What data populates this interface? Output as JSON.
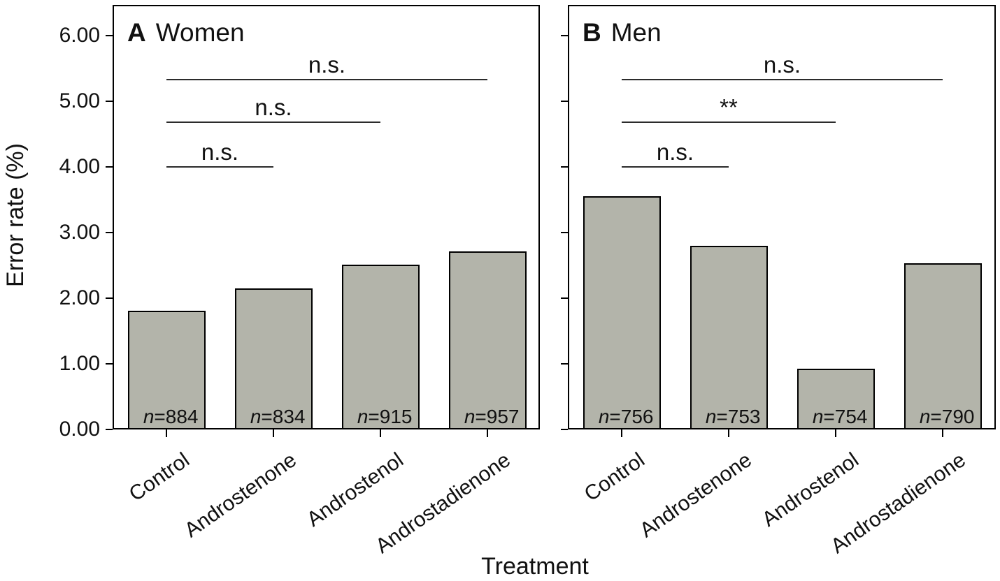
{
  "figure": {
    "xlabel": "Treatment",
    "ylabel": "Error rate (%)"
  },
  "style": {
    "background": "#ffffff",
    "bar_fill": "#b3b4aa",
    "bar_border": "#000000",
    "axis_color": "#000000",
    "sig_line_color": "#2b2b2b",
    "text_color": "#111111"
  },
  "chart_data": [
    {
      "type": "bar",
      "panel_label": "A",
      "title": "Women",
      "categories": [
        "Control",
        "Androstenone",
        "Androstenol",
        "Androstadienone"
      ],
      "values": [
        1.81,
        2.15,
        2.51,
        2.71
      ],
      "bar_labels": [
        "n=884",
        "n=834",
        "n=915",
        "n=957"
      ],
      "xlabel": "Treatment",
      "ylabel": "Error rate (%)",
      "ylim": [
        0,
        6.47
      ],
      "yticks": [
        0,
        1,
        2,
        3,
        4,
        5,
        6
      ],
      "ytick_labels": [
        "0.00",
        "1.00",
        "2.00",
        "3.00",
        "4.00",
        "5.00",
        "6.00"
      ],
      "show_ytick_labels": true,
      "grid": false,
      "significance": [
        {
          "label": "n.s.",
          "from": 0,
          "to": 1,
          "y": 4.0
        },
        {
          "label": "n.s.",
          "from": 0,
          "to": 2,
          "y": 4.68
        },
        {
          "label": "n.s.",
          "from": 0,
          "to": 3,
          "y": 5.33
        }
      ]
    },
    {
      "type": "bar",
      "panel_label": "B",
      "title": "Men",
      "categories": [
        "Control",
        "Androstenone",
        "Androstenol",
        "Androstadienone"
      ],
      "values": [
        3.55,
        2.8,
        0.93,
        2.53
      ],
      "bar_labels": [
        "n=756",
        "n=753",
        "n=754",
        "n=790"
      ],
      "xlabel": "Treatment",
      "ylabel": "Error rate (%)",
      "ylim": [
        0,
        6.47
      ],
      "yticks": [
        0,
        1,
        2,
        3,
        4,
        5,
        6
      ],
      "ytick_labels": [
        "0.00",
        "1.00",
        "2.00",
        "3.00",
        "4.00",
        "5.00",
        "6.00"
      ],
      "show_ytick_labels": false,
      "grid": false,
      "significance": [
        {
          "label": "n.s.",
          "from": 0,
          "to": 1,
          "y": 4.0
        },
        {
          "label": "**",
          "from": 0,
          "to": 2,
          "y": 4.68
        },
        {
          "label": "n.s.",
          "from": 0,
          "to": 3,
          "y": 5.33
        }
      ]
    }
  ]
}
